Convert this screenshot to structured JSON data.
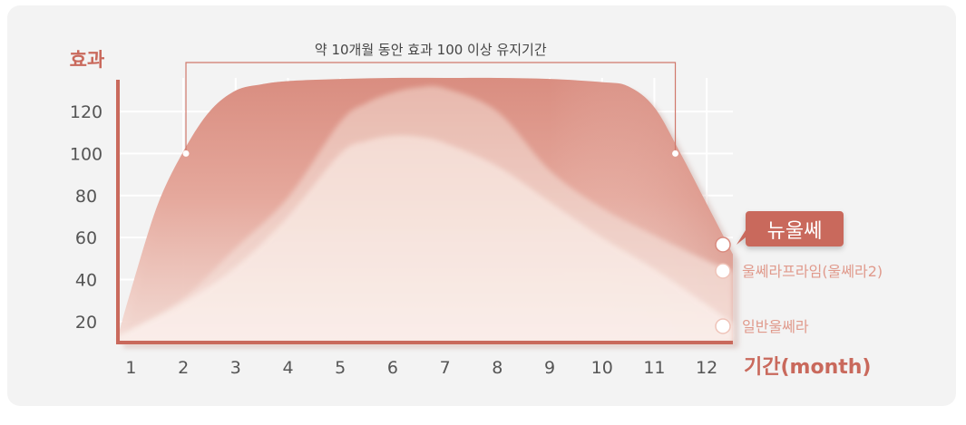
{
  "chart_data": {
    "type": "area",
    "ylabel": "효과",
    "xlabel": "기간(month)",
    "x": [
      1,
      2,
      3,
      4,
      5,
      6,
      7,
      8,
      9,
      10,
      11,
      12
    ],
    "xlim": [
      0.75,
      12.5
    ],
    "ylim": [
      10,
      136
    ],
    "yticks": [
      20,
      40,
      60,
      80,
      100,
      120
    ],
    "grid": true,
    "annotation": {
      "text": "약 10개월 동안 효과 100 이상 유지기간",
      "from_x": 2.05,
      "to_x": 11.4,
      "y": 100
    },
    "series": [
      {
        "name": "뉴울쎄",
        "highlight": true,
        "color": "#d4877a",
        "x": [
          0.75,
          1,
          1.5,
          2,
          2.5,
          3,
          3.5,
          4,
          5,
          6,
          7,
          8,
          9,
          10,
          10.5,
          11,
          11.5,
          12,
          12.5
        ],
        "values": [
          13,
          35,
          75,
          101,
          120,
          130,
          133,
          134.5,
          135.5,
          136,
          136,
          136,
          135.5,
          134,
          132,
          122,
          100,
          76,
          52
        ]
      },
      {
        "name": "울쎄라프라임(울쎄라2)",
        "color": "#e8b3a7",
        "x": [
          0.75,
          1,
          2,
          3,
          4,
          5,
          5.5,
          6,
          6.5,
          7,
          8,
          9,
          10,
          11,
          12,
          12.5
        ],
        "values": [
          13,
          16,
          31,
          55,
          79,
          115,
          124,
          129,
          131.5,
          131,
          120,
          92,
          74,
          61,
          49,
          44
        ]
      },
      {
        "name": "일반울쎄라",
        "color": "#f3d5cc",
        "x": [
          0.75,
          1,
          2,
          3,
          4,
          5,
          5.5,
          6,
          6.5,
          7,
          8,
          9,
          10,
          11,
          12,
          12.5
        ],
        "values": [
          13,
          16,
          29,
          46,
          70,
          100,
          106,
          108.5,
          108,
          105,
          94,
          77,
          60,
          45,
          28,
          19
        ]
      }
    ]
  }
}
